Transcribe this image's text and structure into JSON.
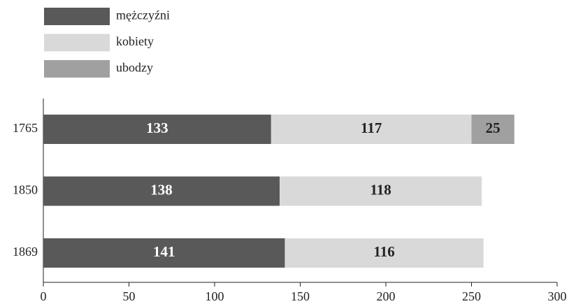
{
  "chart_data": {
    "type": "stacked-barh",
    "categories": [
      "1765",
      "1850",
      "1869"
    ],
    "series": [
      {
        "name": "mężczyźni",
        "color": "#595959",
        "values": [
          133,
          138,
          141
        ]
      },
      {
        "name": "kobiety",
        "color": "#d9d9d9",
        "values": [
          117,
          118,
          116
        ]
      },
      {
        "name": "ubodzy",
        "color": "#a0a0a0",
        "values": [
          25,
          null,
          null
        ]
      }
    ],
    "xlim": [
      0,
      300
    ],
    "xticks": [
      0,
      50,
      100,
      150,
      200,
      250,
      300
    ]
  }
}
